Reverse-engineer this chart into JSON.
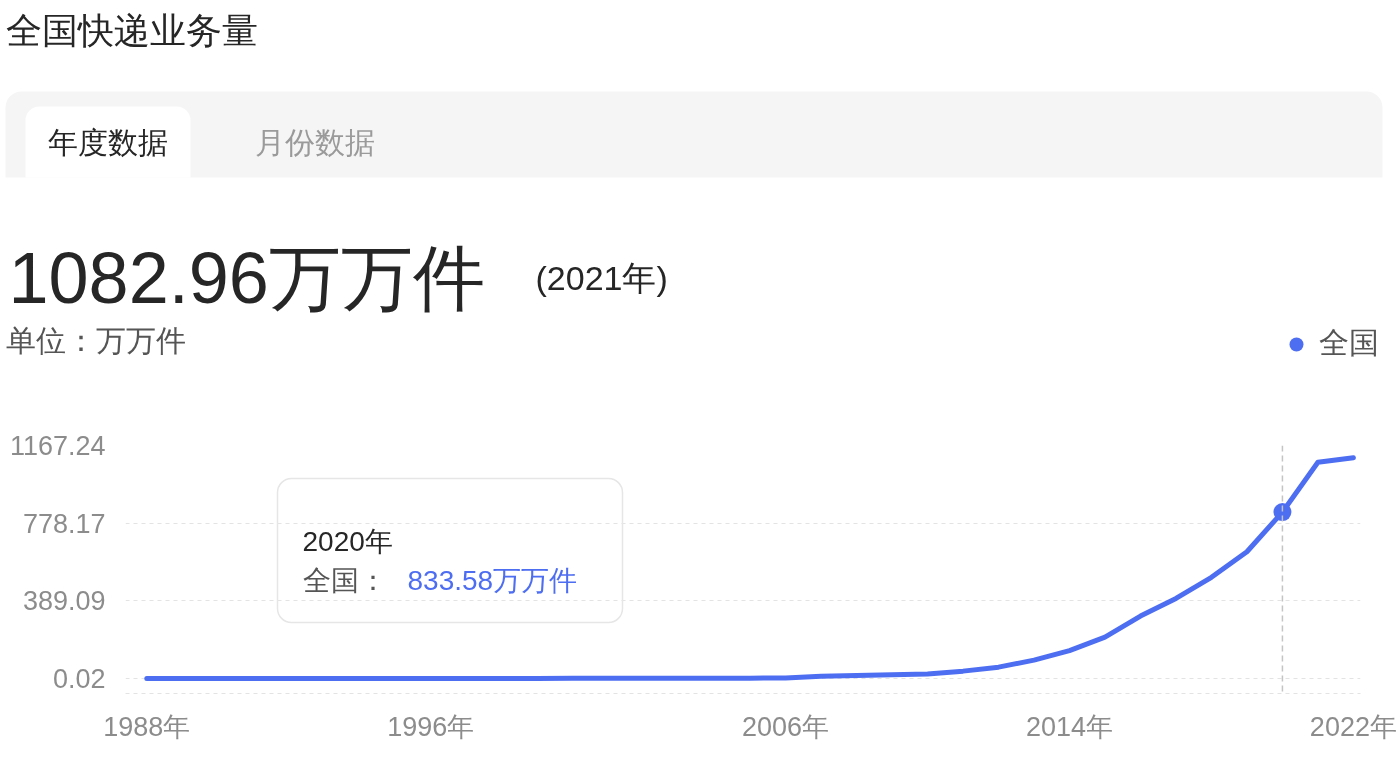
{
  "chart_data": {
    "type": "line",
    "title": "全国快递业务量",
    "subtitle": "1082.96万万件 (2021年)",
    "ylabel": "单位：万万件",
    "x": [
      1988,
      1989,
      1990,
      1991,
      1992,
      1993,
      1994,
      1995,
      1996,
      1997,
      1998,
      1999,
      2000,
      2001,
      2002,
      2003,
      2004,
      2005,
      2006,
      2007,
      2008,
      2009,
      2010,
      2011,
      2012,
      2013,
      2014,
      2015,
      2016,
      2017,
      2018,
      2019,
      2020,
      2021,
      2022
    ],
    "series": [
      {
        "name": "全国",
        "color": "#4e6ef2",
        "values": [
          0,
          0,
          0,
          0,
          0,
          0,
          0,
          0,
          0,
          0,
          0,
          0,
          1,
          1,
          1,
          2,
          2,
          2,
          3,
          12,
          15,
          19,
          23,
          37,
          57,
          92,
          140,
          207,
          313,
          401,
          507,
          635,
          833.58,
          1082.96,
          1106
        ]
      },
      {
        "type": "scatter",
        "x": [
          2020
        ],
        "values": [
          833.58
        ],
        "color": "#4e6ef2",
        "marker": "circle"
      }
    ],
    "xlim": [
      1987.4,
      2022.2
    ],
    "xticks": [
      {
        "value": 1988,
        "label": "1988年"
      },
      {
        "value": 1996,
        "label": "1996年"
      },
      {
        "value": 2006,
        "label": "2006年"
      },
      {
        "value": 2014,
        "label": "2014年"
      },
      {
        "value": 2022,
        "label": "2022年"
      }
    ],
    "ylim": [
      -75,
      1167.24
    ],
    "yticks": [
      0.02,
      389.09,
      778.17,
      1167.24
    ],
    "grid": "y",
    "legend": "top right",
    "ref_lines": [
      {
        "axis": "x",
        "value": 2020,
        "color": "#c4c4c4",
        "line_style": "dashed"
      }
    ],
    "annotations": [
      "年度数据",
      "月份数据",
      "2020年",
      "全国： 833.58万万件"
    ]
  }
}
